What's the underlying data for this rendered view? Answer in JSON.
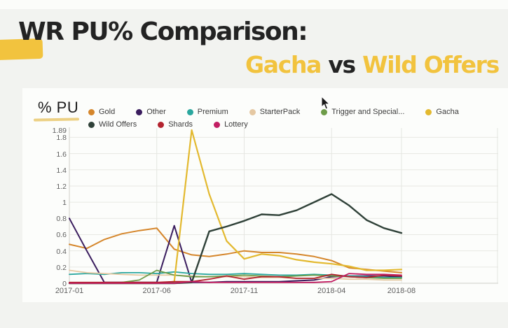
{
  "slide": {
    "title_line1": "WR PU% Comparison:",
    "title_line2": {
      "highlight1": "Gacha",
      "separator": " vs ",
      "highlight2": "Wild Offers"
    },
    "accent_color": "#f2c33e",
    "underline_color": "#e9c86d"
  },
  "chart_data": {
    "type": "line",
    "title": "WR PU% Comparison: Gacha vs Wild Offers",
    "ylabel": "% PU",
    "xlabel": "",
    "grid": true,
    "legend_position": "top",
    "ylim": [
      0,
      1.89
    ],
    "y_ticks": [
      1.89,
      1.8,
      1.6,
      1.4,
      1.2,
      1,
      0.8,
      0.6,
      0.4,
      0.2,
      0
    ],
    "y_tick_labels": [
      "1.89",
      "1.8",
      "1.6",
      "1.4",
      "1.2",
      "1",
      "0.8",
      "0.6",
      "0.4",
      "0.2",
      "0"
    ],
    "x": [
      "2017-01",
      "2017-02",
      "2017-03",
      "2017-04",
      "2017-05",
      "2017-06",
      "2017-07",
      "2017-08",
      "2017-09",
      "2017-10",
      "2017-11",
      "2017-12",
      "2018-01",
      "2018-02",
      "2018-03",
      "2018-04",
      "2018-05",
      "2018-06",
      "2018-07",
      "2018-08"
    ],
    "x_tick_labels": [
      "2017-01",
      "2017-06",
      "2017-11",
      "2018-04",
      "2018-08"
    ],
    "x_tick_indices": [
      0,
      5,
      10,
      15,
      19
    ],
    "series": [
      {
        "name": "Gold",
        "color": "#d5862b",
        "row": 1,
        "width": 2,
        "values": [
          0.48,
          0.43,
          0.54,
          0.61,
          0.65,
          0.68,
          0.42,
          0.35,
          0.33,
          0.36,
          0.4,
          0.38,
          0.38,
          0.36,
          0.33,
          0.28,
          0.19,
          0.17,
          0.15,
          0.13
        ]
      },
      {
        "name": "Other",
        "color": "#3a1d5e",
        "row": 1,
        "width": 2,
        "values": [
          0.8,
          0.4,
          0.01,
          0.01,
          0.01,
          0.01,
          0.71,
          0.01,
          0.01,
          0.02,
          0.02,
          0.02,
          0.02,
          0.03,
          0.04,
          0.08,
          0.09,
          0.09,
          0.09,
          0.08
        ]
      },
      {
        "name": "Premium",
        "color": "#2aa79e",
        "row": 1,
        "width": 1.8,
        "values": [
          0.11,
          0.12,
          0.11,
          0.13,
          0.13,
          0.12,
          0.14,
          0.12,
          0.11,
          0.11,
          0.12,
          0.11,
          0.1,
          0.1,
          0.11,
          0.1,
          0.09,
          0.08,
          0.07,
          0.07
        ]
      },
      {
        "name": "StarterPack",
        "color": "#e5c8a2",
        "row": 1,
        "width": 1.8,
        "values": [
          0.16,
          0.13,
          0.12,
          0.11,
          0.1,
          0.1,
          0.1,
          0.09,
          0.08,
          0.08,
          0.08,
          0.07,
          0.07,
          0.06,
          0.06,
          0.06,
          0.05,
          0.05,
          0.04,
          0.04
        ]
      },
      {
        "name": "Trigger and Special...",
        "color": "#6e9c49",
        "row": 1,
        "width": 1.8,
        "values": [
          0.0,
          0.0,
          0.0,
          0.01,
          0.04,
          0.16,
          0.1,
          0.08,
          0.08,
          0.09,
          0.1,
          0.09,
          0.08,
          0.09,
          0.1,
          0.09,
          0.08,
          0.07,
          0.06,
          0.06
        ]
      },
      {
        "name": "Gacha",
        "color": "#e3b92f",
        "row": 1,
        "width": 2.2,
        "values": [
          0.0,
          0.0,
          0.0,
          0.0,
          0.0,
          0.0,
          0.02,
          1.89,
          1.1,
          0.52,
          0.3,
          0.36,
          0.34,
          0.29,
          0.26,
          0.24,
          0.21,
          0.16,
          0.16,
          0.17
        ]
      },
      {
        "name": "Wild Offers",
        "color": "#2f4138",
        "row": 2,
        "width": 2.4,
        "values": [
          0.0,
          0.0,
          0.0,
          0.0,
          0.0,
          0.0,
          0.0,
          0.01,
          0.64,
          0.7,
          0.77,
          0.85,
          0.84,
          0.9,
          1.0,
          1.1,
          0.96,
          0.78,
          0.68,
          0.62
        ]
      },
      {
        "name": "Shards",
        "color": "#b3242f",
        "row": 2,
        "width": 1.8,
        "values": [
          0.01,
          0.01,
          0.01,
          0.01,
          0.01,
          0.01,
          0.02,
          0.02,
          0.05,
          0.09,
          0.05,
          0.08,
          0.08,
          0.06,
          0.06,
          0.11,
          0.08,
          0.07,
          0.1,
          0.09
        ]
      },
      {
        "name": "Lottery",
        "color": "#c21f63",
        "row": 2,
        "width": 1.8,
        "values": [
          0.0,
          0.0,
          0.0,
          0.0,
          0.0,
          0.0,
          0.0,
          0.02,
          0.01,
          0.01,
          0.01,
          0.01,
          0.01,
          0.01,
          0.01,
          0.02,
          0.12,
          0.11,
          0.11,
          0.1
        ]
      }
    ]
  }
}
